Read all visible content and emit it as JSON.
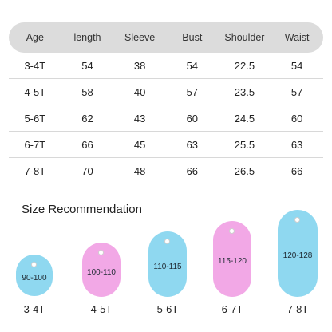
{
  "table": {
    "headers": [
      "Age",
      "length",
      "Sleeve",
      "Bust",
      "Shoulder",
      "Waist"
    ],
    "rows": [
      [
        "3-4T",
        "54",
        "38",
        "54",
        "22.5",
        "54"
      ],
      [
        "4-5T",
        "58",
        "40",
        "57",
        "23.5",
        "57"
      ],
      [
        "5-6T",
        "62",
        "43",
        "60",
        "24.5",
        "60"
      ],
      [
        "6-7T",
        "66",
        "45",
        "63",
        "25.5",
        "63"
      ],
      [
        "7-8T",
        "70",
        "48",
        "66",
        "26.5",
        "66"
      ]
    ]
  },
  "recommendation": {
    "title": "Size Recommendation",
    "tags": [
      {
        "range": "90-100",
        "age": "3-4T",
        "color": "#8fd8f0"
      },
      {
        "range": "100-110",
        "age": "4-5T",
        "color": "#f2a8e6"
      },
      {
        "range": "110-115",
        "age": "5-6T",
        "color": "#8fd8f0"
      },
      {
        "range": "115-120",
        "age": "6-7T",
        "color": "#f2a8e6"
      },
      {
        "range": "120-128",
        "age": "7-8T",
        "color": "#8fd8f0"
      }
    ]
  },
  "colors": {
    "header_bg": "#dcdcdc",
    "blue_tag": "#8fd8f0",
    "pink_tag": "#f2a8e6"
  }
}
